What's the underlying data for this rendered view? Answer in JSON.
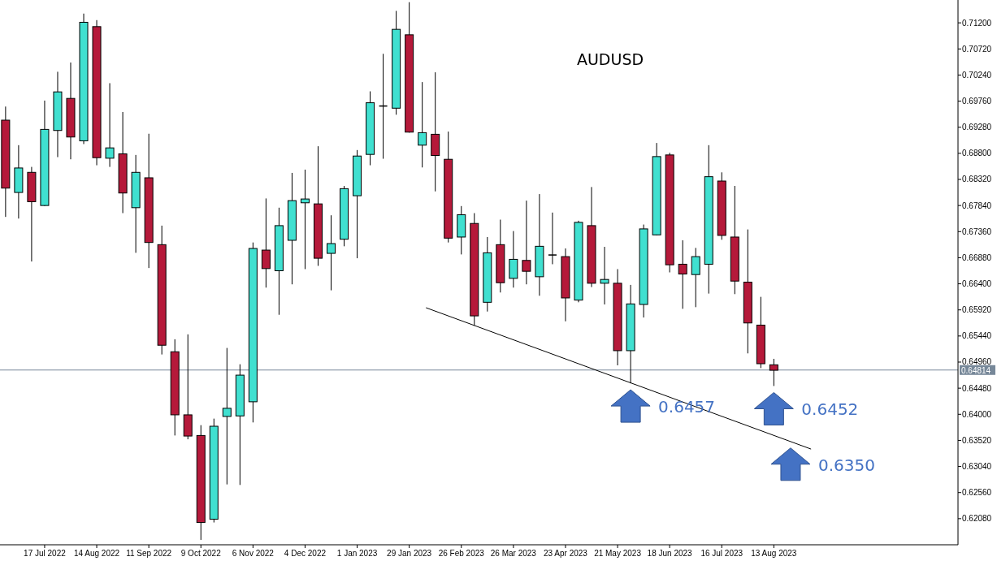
{
  "chart_data": {
    "type": "candlestick",
    "title": "AUDUSD",
    "x": [
      "2022-06-26",
      "2022-07-03",
      "2022-07-10",
      "2022-07-17",
      "2022-07-24",
      "2022-07-31",
      "2022-08-07",
      "2022-08-14",
      "2022-08-21",
      "2022-08-28",
      "2022-09-04",
      "2022-09-11",
      "2022-09-18",
      "2022-09-25",
      "2022-10-02",
      "2022-10-09",
      "2022-10-16",
      "2022-10-23",
      "2022-10-30",
      "2022-11-06",
      "2022-11-13",
      "2022-11-20",
      "2022-11-27",
      "2022-12-04",
      "2022-12-11",
      "2022-12-18",
      "2022-12-25",
      "2023-01-01",
      "2023-01-08",
      "2023-01-15",
      "2023-01-22",
      "2023-01-29",
      "2023-02-05",
      "2023-02-12",
      "2023-02-19",
      "2023-02-26",
      "2023-03-05",
      "2023-03-12",
      "2023-03-19",
      "2023-03-26",
      "2023-04-02",
      "2023-04-09",
      "2023-04-16",
      "2023-04-23",
      "2023-04-30",
      "2023-05-07",
      "2023-05-14",
      "2023-05-21",
      "2023-05-28",
      "2023-06-04",
      "2023-06-11",
      "2023-06-18",
      "2023-06-25",
      "2023-07-02",
      "2023-07-09",
      "2023-07-16",
      "2023-07-23",
      "2023-07-30",
      "2023-08-06",
      "2023-08-13"
    ],
    "ohlc": [
      [
        0.6941,
        0.6966,
        0.6763,
        0.6816
      ],
      [
        0.6808,
        0.6895,
        0.676,
        0.6853
      ],
      [
        0.6845,
        0.6855,
        0.6681,
        0.6791
      ],
      [
        0.6784,
        0.6977,
        0.6783,
        0.6924
      ],
      [
        0.6922,
        0.703,
        0.6873,
        0.6993
      ],
      [
        0.6981,
        0.7047,
        0.6869,
        0.691
      ],
      [
        0.6903,
        0.7137,
        0.6897,
        0.7121
      ],
      [
        0.7113,
        0.7125,
        0.6858,
        0.6872
      ],
      [
        0.6871,
        0.7009,
        0.6855,
        0.689
      ],
      [
        0.6879,
        0.6956,
        0.677,
        0.6807
      ],
      [
        0.678,
        0.6877,
        0.6697,
        0.6845
      ],
      [
        0.6835,
        0.6916,
        0.6669,
        0.6716
      ],
      [
        0.6712,
        0.6747,
        0.651,
        0.6527
      ],
      [
        0.6515,
        0.6538,
        0.6361,
        0.6399
      ],
      [
        0.6399,
        0.6547,
        0.6354,
        0.636
      ],
      [
        0.6361,
        0.638,
        0.6169,
        0.6201
      ],
      [
        0.6207,
        0.6392,
        0.6201,
        0.6378
      ],
      [
        0.6396,
        0.6522,
        0.6271,
        0.6411
      ],
      [
        0.6397,
        0.6492,
        0.627,
        0.6472
      ],
      [
        0.6423,
        0.6716,
        0.6385,
        0.6705
      ],
      [
        0.6702,
        0.6797,
        0.6633,
        0.6668
      ],
      [
        0.6664,
        0.678,
        0.6583,
        0.6747
      ],
      [
        0.672,
        0.6844,
        0.6639,
        0.6793
      ],
      [
        0.6789,
        0.685,
        0.6667,
        0.6796
      ],
      [
        0.6787,
        0.6893,
        0.6673,
        0.6687
      ],
      [
        0.6696,
        0.6766,
        0.6628,
        0.6714
      ],
      [
        0.6722,
        0.682,
        0.6709,
        0.6815
      ],
      [
        0.6802,
        0.6886,
        0.6687,
        0.6875
      ],
      [
        0.6878,
        0.6994,
        0.6858,
        0.6973
      ],
      [
        0.6967,
        0.7063,
        0.687,
        0.6967
      ],
      [
        0.6963,
        0.7142,
        0.6951,
        0.7108
      ],
      [
        0.7098,
        0.7158,
        0.6918,
        0.6919
      ],
      [
        0.6895,
        0.7011,
        0.6854,
        0.6918
      ],
      [
        0.6915,
        0.7029,
        0.681,
        0.6876
      ],
      [
        0.6869,
        0.692,
        0.6716,
        0.6724
      ],
      [
        0.6726,
        0.6783,
        0.6694,
        0.6767
      ],
      [
        0.6751,
        0.677,
        0.6563,
        0.6581
      ],
      [
        0.6606,
        0.6726,
        0.6589,
        0.6697
      ],
      [
        0.6712,
        0.6758,
        0.6624,
        0.6642
      ],
      [
        0.665,
        0.6737,
        0.6633,
        0.6685
      ],
      [
        0.6683,
        0.6793,
        0.6639,
        0.6663
      ],
      [
        0.6653,
        0.6805,
        0.6618,
        0.6709
      ],
      [
        0.6693,
        0.6771,
        0.6676,
        0.6693
      ],
      [
        0.669,
        0.6705,
        0.6571,
        0.6614
      ],
      [
        0.661,
        0.6756,
        0.6606,
        0.6753
      ],
      [
        0.6747,
        0.6818,
        0.6634,
        0.6641
      ],
      [
        0.6641,
        0.6708,
        0.6602,
        0.6648
      ],
      [
        0.6641,
        0.6667,
        0.649,
        0.6517
      ],
      [
        0.6517,
        0.6638,
        0.6457,
        0.6603
      ],
      [
        0.6602,
        0.6749,
        0.6578,
        0.6741
      ],
      [
        0.673,
        0.6899,
        0.6729,
        0.6874
      ],
      [
        0.6877,
        0.6881,
        0.6661,
        0.6675
      ],
      [
        0.6676,
        0.672,
        0.6594,
        0.6658
      ],
      [
        0.6657,
        0.6706,
        0.6597,
        0.669
      ],
      [
        0.6676,
        0.6895,
        0.6622,
        0.6837
      ],
      [
        0.6829,
        0.6845,
        0.6721,
        0.6729
      ],
      [
        0.6726,
        0.682,
        0.6621,
        0.6645
      ],
      [
        0.6643,
        0.674,
        0.6512,
        0.6568
      ],
      [
        0.6564,
        0.6616,
        0.6485,
        0.6493
      ],
      [
        0.6491,
        0.6502,
        0.6452,
        0.6481
      ]
    ],
    "colors": [
      "#b5193a",
      "#40e0d0",
      "#b5193a",
      "#40e0d0",
      "#40e0d0",
      "#b5193a",
      "#40e0d0",
      "#b5193a",
      "#40e0d0",
      "#b5193a",
      "#40e0d0",
      "#b5193a",
      "#b5193a",
      "#b5193a",
      "#b5193a",
      "#b5193a",
      "#40e0d0",
      "#40e0d0",
      "#40e0d0",
      "#40e0d0",
      "#b5193a",
      "#40e0d0",
      "#40e0d0",
      "#40e0d0",
      "#b5193a",
      "#40e0d0",
      "#40e0d0",
      "#40e0d0",
      "#40e0d0",
      "#000000",
      "#40e0d0",
      "#b5193a",
      "#40e0d0",
      "#b5193a",
      "#b5193a",
      "#40e0d0",
      "#b5193a",
      "#40e0d0",
      "#b5193a",
      "#40e0d0",
      "#b5193a",
      "#40e0d0",
      "#000000",
      "#b5193a",
      "#40e0d0",
      "#b5193a",
      "#40e0d0",
      "#b5193a",
      "#40e0d0",
      "#40e0d0",
      "#40e0d0",
      "#b5193a",
      "#b5193a",
      "#40e0d0",
      "#40e0d0",
      "#b5193a",
      "#b5193a",
      "#b5193a",
      "#b5193a",
      "#b5193a"
    ],
    "series": [
      {
        "type": "line",
        "x": [
          "2023-02-07",
          "2023-09-02"
        ],
        "values": [
          0.6596,
          0.6336
        ],
        "color": "#000000"
      }
    ],
    "xlim": [
      "2022-06-23",
      "2023-11-20"
    ],
    "xticks": [
      {
        "value": "2022-07-17",
        "label": "17 Jul 2022"
      },
      {
        "value": "2022-08-14",
        "label": "14 Aug 2022"
      },
      {
        "value": "2022-09-11",
        "label": "11 Sep 2022"
      },
      {
        "value": "2022-10-09",
        "label": "9 Oct 2022"
      },
      {
        "value": "2022-11-06",
        "label": "6 Nov 2022"
      },
      {
        "value": "2022-12-04",
        "label": "4 Dec 2022"
      },
      {
        "value": "2023-01-01",
        "label": "1 Jan 2023"
      },
      {
        "value": "2023-01-29",
        "label": "29 Jan 2023"
      },
      {
        "value": "2023-02-26",
        "label": "26 Feb 2023"
      },
      {
        "value": "2023-03-26",
        "label": "26 Mar 2023"
      },
      {
        "value": "2023-04-23",
        "label": "23 Apr 2023"
      },
      {
        "value": "2023-05-21",
        "label": "21 May 2023"
      },
      {
        "value": "2023-06-18",
        "label": "18 Jun 2023"
      },
      {
        "value": "2023-07-16",
        "label": "16 Jul 2023"
      },
      {
        "value": "2023-08-13",
        "label": "13 Aug 2023"
      }
    ],
    "ylim": [
      0.616,
      0.7162
    ],
    "yticks": [
      {
        "value": 0.6208,
        "label": "0.62080"
      },
      {
        "value": 0.6256,
        "label": "0.62560"
      },
      {
        "value": 0.6304,
        "label": "0.63040"
      },
      {
        "value": 0.6352,
        "label": "0.63520"
      },
      {
        "value": 0.64,
        "label": "0.64000"
      },
      {
        "value": 0.6448,
        "label": "0.64480"
      },
      {
        "value": 0.6496,
        "label": "0.64960"
      },
      {
        "value": 0.6544,
        "label": "0.65440"
      },
      {
        "value": 0.6592,
        "label": "0.65920"
      },
      {
        "value": 0.664,
        "label": "0.66400"
      },
      {
        "value": 0.6688,
        "label": "0.66880"
      },
      {
        "value": 0.6736,
        "label": "0.67360"
      },
      {
        "value": 0.6784,
        "label": "0.67840"
      },
      {
        "value": 0.6832,
        "label": "0.68320"
      },
      {
        "value": 0.688,
        "label": "0.68800"
      },
      {
        "value": 0.6928,
        "label": "0.69280"
      },
      {
        "value": 0.6976,
        "label": "0.69760"
      },
      {
        "value": 0.7024,
        "label": "0.70240"
      },
      {
        "value": 0.7072,
        "label": "0.70720"
      },
      {
        "value": 0.712,
        "label": "0.71200"
      }
    ],
    "ref_lines": [
      {
        "axis": "y",
        "value": 0.64814,
        "label": "0.64814",
        "color": "#778899"
      }
    ],
    "annotations": [
      {
        "text": "0.6457",
        "x": "2023-05-28",
        "y": 0.6457
      },
      {
        "text": "0.6452",
        "x": "2023-08-13",
        "y": 0.6452
      },
      {
        "text": "0.6350",
        "x": "2023-08-22",
        "y": 0.635
      }
    ],
    "grid": false
  }
}
